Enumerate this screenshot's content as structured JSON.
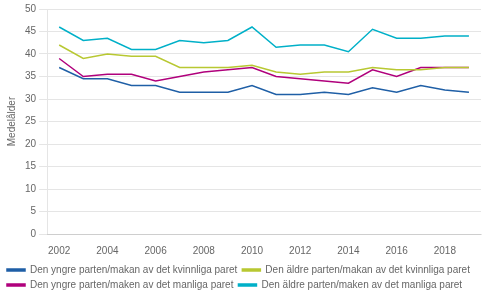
{
  "chart_data": {
    "type": "line",
    "ylabel": "Medelålder",
    "x": [
      2002,
      2003,
      2004,
      2005,
      2006,
      2007,
      2008,
      2009,
      2010,
      2011,
      2012,
      2013,
      2014,
      2015,
      2016,
      2017,
      2018,
      2019
    ],
    "series": [
      {
        "name": "Den yngre parten/makan av det kvinnliga paret",
        "color": "#1f5fa6",
        "values": [
          37,
          34.5,
          34.5,
          33,
          33,
          31.5,
          31.5,
          31.5,
          33,
          31,
          31,
          31.5,
          31,
          32.5,
          31.5,
          33,
          32,
          31.5
        ]
      },
      {
        "name": "Den äldre parten/makan av det kvinnliga paret",
        "color": "#b8c832",
        "values": [
          42,
          39,
          40,
          39.5,
          39.5,
          37,
          37,
          37,
          37.5,
          36,
          35.5,
          36,
          36,
          37,
          36.5,
          36.5,
          37,
          37
        ]
      },
      {
        "name": "Den yngre parten/maken av det manliga paret",
        "color": "#b0007c",
        "values": [
          39,
          35,
          35.5,
          35.5,
          34,
          35,
          36,
          36.5,
          37,
          35,
          34.5,
          34,
          33.5,
          36.5,
          35,
          37,
          37,
          37
        ]
      },
      {
        "name": "Den äldre parten/maken av det manliga paret",
        "color": "#00b0c8",
        "values": [
          46,
          43,
          43.5,
          41,
          41,
          43,
          42.5,
          43,
          46,
          41.5,
          42,
          42,
          40.5,
          45.5,
          43.5,
          43.5,
          44,
          44
        ]
      }
    ],
    "xlim": [
      2001.5,
      2019.5
    ],
    "xticks": [
      2002,
      2004,
      2006,
      2008,
      2010,
      2012,
      2014,
      2016,
      2018
    ],
    "ylim": [
      0,
      50
    ],
    "yticks": [
      0,
      5,
      10,
      15,
      20,
      25,
      30,
      35,
      40,
      45,
      50
    ],
    "grid": true,
    "legend": "bottom"
  }
}
